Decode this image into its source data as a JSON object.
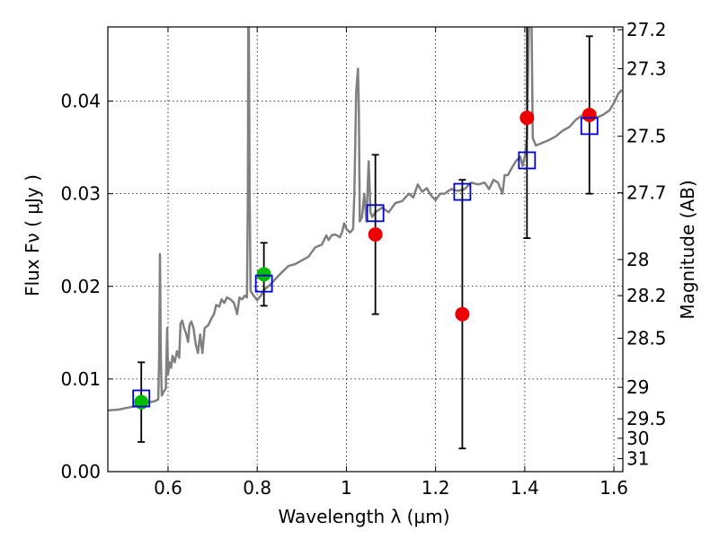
{
  "chart_data": {
    "type": "scatter",
    "xlabel": "Wavelength  λ (μm)",
    "ylabel": "Flux  Fν  ( μJy )",
    "y2label": "Magnitude (AB)",
    "xlim": [
      0.465,
      1.62
    ],
    "ylim": [
      0.0,
      0.048
    ],
    "grid": true,
    "x_ticks": [
      0.6,
      0.8,
      1.0,
      1.2,
      1.4,
      1.6
    ],
    "x_tick_labels": [
      "0.6",
      "0.8",
      "1",
      "1.2",
      "1.4",
      "1.6"
    ],
    "y_ticks": [
      0.0,
      0.01,
      0.02,
      0.03,
      0.04
    ],
    "y_tick_labels": [
      "0.00",
      "0.01",
      "0.02",
      "0.03",
      "0.04"
    ],
    "y2_ticks": [
      {
        "label": "27.2",
        "flux": 0.0477
      },
      {
        "label": "27.3",
        "flux": 0.0435
      },
      {
        "label": "27.5",
        "flux": 0.0362
      },
      {
        "label": "27.7",
        "flux": 0.0301
      },
      {
        "label": "28",
        "flux": 0.0229
      },
      {
        "label": "28.2",
        "flux": 0.019
      },
      {
        "label": "28.5",
        "flux": 0.0144
      },
      {
        "label": "29",
        "flux": 0.0091
      },
      {
        "label": "29.5",
        "flux": 0.0057
      },
      {
        "label": "30",
        "flux": 0.0036
      },
      {
        "label": "31",
        "flux": 0.0014
      }
    ],
    "colors": {
      "model": "#808080",
      "green_points": "#00bb00",
      "red_points": "#ee0000",
      "model_boxes": "#0000cc",
      "errorbars": "#000000"
    },
    "series": [
      {
        "kind": "line",
        "color_key": "model",
        "points": [
          [
            0.465,
            0.0066
          ],
          [
            0.49,
            0.0067
          ],
          [
            0.51,
            0.0069
          ],
          [
            0.53,
            0.0071
          ],
          [
            0.55,
            0.0074
          ],
          [
            0.57,
            0.0076
          ],
          [
            0.578,
            0.0078
          ],
          [
            0.58,
            0.0125
          ],
          [
            0.582,
            0.0235
          ],
          [
            0.584,
            0.012
          ],
          [
            0.586,
            0.0082
          ],
          [
            0.59,
            0.0086
          ],
          [
            0.595,
            0.009
          ],
          [
            0.598,
            0.0155
          ],
          [
            0.6,
            0.0105
          ],
          [
            0.603,
            0.0118
          ],
          [
            0.607,
            0.0112
          ],
          [
            0.61,
            0.0125
          ],
          [
            0.615,
            0.0118
          ],
          [
            0.62,
            0.013
          ],
          [
            0.625,
            0.0123
          ],
          [
            0.628,
            0.016
          ],
          [
            0.632,
            0.0163
          ],
          [
            0.636,
            0.0155
          ],
          [
            0.64,
            0.015
          ],
          [
            0.645,
            0.014
          ],
          [
            0.648,
            0.0158
          ],
          [
            0.652,
            0.0162
          ],
          [
            0.657,
            0.0155
          ],
          [
            0.662,
            0.0138
          ],
          [
            0.667,
            0.0128
          ],
          [
            0.672,
            0.0148
          ],
          [
            0.677,
            0.0128
          ],
          [
            0.682,
            0.0155
          ],
          [
            0.69,
            0.0158
          ],
          [
            0.697,
            0.0165
          ],
          [
            0.703,
            0.017
          ],
          [
            0.708,
            0.018
          ],
          [
            0.715,
            0.0178
          ],
          [
            0.72,
            0.0186
          ],
          [
            0.726,
            0.0182
          ],
          [
            0.732,
            0.0188
          ],
          [
            0.74,
            0.0186
          ],
          [
            0.748,
            0.0182
          ],
          [
            0.755,
            0.017
          ],
          [
            0.76,
            0.0188
          ],
          [
            0.766,
            0.0186
          ],
          [
            0.772,
            0.019
          ],
          [
            0.777,
            0.0188
          ],
          [
            0.779,
            0.03
          ],
          [
            0.78,
            0.049
          ],
          [
            0.781,
            0.05
          ],
          [
            0.783,
            0.03
          ],
          [
            0.785,
            0.0195
          ],
          [
            0.792,
            0.019
          ],
          [
            0.8,
            0.0185
          ],
          [
            0.808,
            0.019
          ],
          [
            0.815,
            0.0196
          ],
          [
            0.825,
            0.02
          ],
          [
            0.835,
            0.0205
          ],
          [
            0.845,
            0.021
          ],
          [
            0.855,
            0.0215
          ],
          [
            0.87,
            0.0222
          ],
          [
            0.885,
            0.0224
          ],
          [
            0.9,
            0.0228
          ],
          [
            0.915,
            0.0232
          ],
          [
            0.93,
            0.0242
          ],
          [
            0.945,
            0.0245
          ],
          [
            0.955,
            0.0255
          ],
          [
            0.96,
            0.025
          ],
          [
            0.967,
            0.0255
          ],
          [
            0.975,
            0.0256
          ],
          [
            0.985,
            0.0253
          ],
          [
            0.99,
            0.0258
          ],
          [
            0.995,
            0.0268
          ],
          [
            1.0,
            0.0262
          ],
          [
            1.008,
            0.0258
          ],
          [
            1.015,
            0.0262
          ],
          [
            1.018,
            0.03
          ],
          [
            1.022,
            0.041
          ],
          [
            1.026,
            0.0435
          ],
          [
            1.028,
            0.039
          ],
          [
            1.03,
            0.027
          ],
          [
            1.035,
            0.0275
          ],
          [
            1.04,
            0.03
          ],
          [
            1.045,
            0.027
          ],
          [
            1.05,
            0.0335
          ],
          [
            1.054,
            0.028
          ],
          [
            1.058,
            0.0275
          ],
          [
            1.065,
            0.028
          ],
          [
            1.08,
            0.0285
          ],
          [
            1.095,
            0.028
          ],
          [
            1.11,
            0.029
          ],
          [
            1.125,
            0.0292
          ],
          [
            1.14,
            0.03
          ],
          [
            1.15,
            0.0296
          ],
          [
            1.16,
            0.031
          ],
          [
            1.17,
            0.0302
          ],
          [
            1.18,
            0.0306
          ],
          [
            1.19,
            0.0298
          ],
          [
            1.2,
            0.0293
          ],
          [
            1.21,
            0.03
          ],
          [
            1.22,
            0.03
          ],
          [
            1.235,
            0.0305
          ],
          [
            1.25,
            0.0303
          ],
          [
            1.265,
            0.0305
          ],
          [
            1.28,
            0.0312
          ],
          [
            1.295,
            0.031
          ],
          [
            1.31,
            0.0312
          ],
          [
            1.32,
            0.0305
          ],
          [
            1.33,
            0.0315
          ],
          [
            1.34,
            0.0312
          ],
          [
            1.35,
            0.03
          ],
          [
            1.355,
            0.032
          ],
          [
            1.362,
            0.032
          ],
          [
            1.37,
            0.0327
          ],
          [
            1.38,
            0.0335
          ],
          [
            1.39,
            0.034
          ],
          [
            1.395,
            0.033
          ],
          [
            1.4,
            0.034
          ],
          [
            1.405,
            0.036
          ],
          [
            1.41,
            0.05
          ],
          [
            1.415,
            0.05
          ],
          [
            1.418,
            0.036
          ],
          [
            1.425,
            0.0352
          ],
          [
            1.44,
            0.0355
          ],
          [
            1.455,
            0.0358
          ],
          [
            1.47,
            0.0362
          ],
          [
            1.485,
            0.0368
          ],
          [
            1.5,
            0.0372
          ],
          [
            1.515,
            0.038
          ],
          [
            1.53,
            0.0385
          ],
          [
            1.545,
            0.038
          ],
          [
            1.56,
            0.0382
          ],
          [
            1.575,
            0.0385
          ],
          [
            1.59,
            0.039
          ],
          [
            1.6,
            0.0398
          ],
          [
            1.61,
            0.0408
          ],
          [
            1.618,
            0.0412
          ]
        ]
      },
      {
        "kind": "points",
        "color_key": "green_points",
        "points": [
          {
            "x": 0.54,
            "y": 0.0075,
            "err": 0.0043
          },
          {
            "x": 0.815,
            "y": 0.0213,
            "err": 0.0034
          }
        ]
      },
      {
        "kind": "points",
        "color_key": "red_points",
        "points": [
          {
            "x": 1.065,
            "y": 0.0256,
            "err": 0.0086
          },
          {
            "x": 1.26,
            "y": 0.017,
            "err": 0.0145
          },
          {
            "x": 1.405,
            "y": 0.0382,
            "err": 0.013
          },
          {
            "x": 1.545,
            "y": 0.0385,
            "err": 0.0085
          }
        ]
      },
      {
        "kind": "boxes",
        "color_key": "model_boxes",
        "points": [
          {
            "x": 0.54,
            "y": 0.0079
          },
          {
            "x": 0.815,
            "y": 0.0203
          },
          {
            "x": 1.065,
            "y": 0.0279
          },
          {
            "x": 1.26,
            "y": 0.0302
          },
          {
            "x": 1.405,
            "y": 0.0336
          },
          {
            "x": 1.545,
            "y": 0.0373
          }
        ]
      }
    ]
  }
}
